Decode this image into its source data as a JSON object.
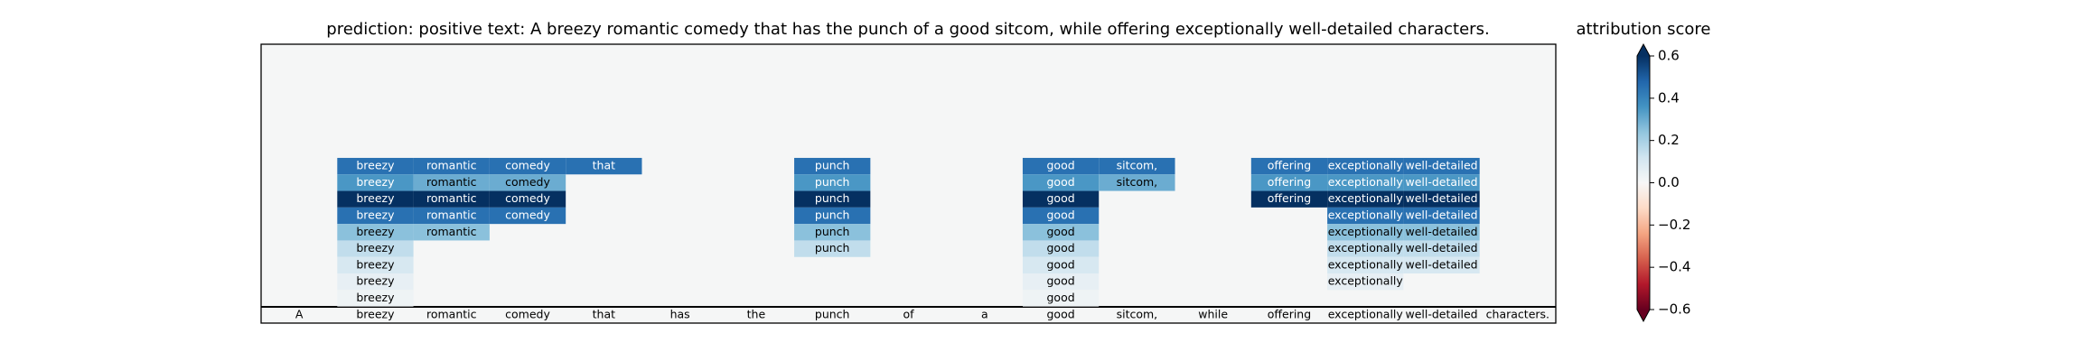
{
  "chart_data": {
    "type": "heatmap",
    "title": "prediction:  positive     text:  A breezy romantic comedy that has the punch of a good sitcom, while offering exceptionally well-detailed characters.",
    "colorbar_label": "attribution score",
    "colormap": "RdBu",
    "clim": [
      -0.6,
      0.6
    ],
    "colorbar_ticks": [
      {
        "value": 0.6,
        "label": "0.6"
      },
      {
        "value": 0.4,
        "label": "0.4"
      },
      {
        "value": 0.2,
        "label": "0.2"
      },
      {
        "value": 0.0,
        "label": "0.0"
      },
      {
        "value": -0.2,
        "label": "−0.2"
      },
      {
        "value": -0.4,
        "label": "−0.4"
      },
      {
        "value": -0.6,
        "label": "−0.6"
      }
    ],
    "tokens": [
      "A",
      "breezy",
      "romantic",
      "comedy",
      "that",
      "has",
      "the",
      "punch",
      "of",
      "a",
      "good",
      "sitcom,",
      "while",
      "offering",
      "exceptionally",
      "well-detailed",
      "characters."
    ],
    "rows": [
      {
        "values": [
          null,
          0.45,
          0.45,
          0.45,
          0.45,
          null,
          null,
          0.45,
          null,
          null,
          0.45,
          0.45,
          null,
          0.45,
          0.45,
          0.45,
          null
        ]
      },
      {
        "values": [
          null,
          0.35,
          0.3,
          0.3,
          null,
          null,
          null,
          0.35,
          null,
          null,
          0.35,
          0.3,
          null,
          0.35,
          0.35,
          0.35,
          null
        ]
      },
      {
        "values": [
          null,
          0.6,
          0.6,
          0.6,
          null,
          null,
          null,
          0.6,
          null,
          null,
          0.6,
          null,
          null,
          0.6,
          0.6,
          0.6,
          null
        ]
      },
      {
        "values": [
          null,
          0.45,
          0.45,
          0.45,
          null,
          null,
          null,
          0.45,
          null,
          null,
          0.45,
          null,
          null,
          null,
          0.45,
          0.45,
          null
        ]
      },
      {
        "values": [
          null,
          0.25,
          0.25,
          null,
          null,
          null,
          null,
          0.25,
          null,
          null,
          0.25,
          null,
          null,
          null,
          0.25,
          0.25,
          null
        ]
      },
      {
        "values": [
          null,
          0.15,
          null,
          null,
          null,
          null,
          null,
          0.15,
          null,
          null,
          0.15,
          null,
          null,
          null,
          0.15,
          0.15,
          null
        ]
      },
      {
        "values": [
          null,
          0.1,
          null,
          null,
          null,
          null,
          null,
          null,
          null,
          null,
          0.1,
          null,
          null,
          null,
          0.1,
          0.1,
          null
        ]
      },
      {
        "values": [
          null,
          0.05,
          null,
          null,
          null,
          null,
          null,
          null,
          null,
          null,
          0.05,
          null,
          null,
          null,
          0.05,
          null,
          null
        ]
      },
      {
        "values": [
          null,
          0.03,
          null,
          null,
          null,
          null,
          null,
          null,
          null,
          null,
          0.03,
          null,
          null,
          null,
          null,
          null,
          null
        ]
      }
    ]
  }
}
